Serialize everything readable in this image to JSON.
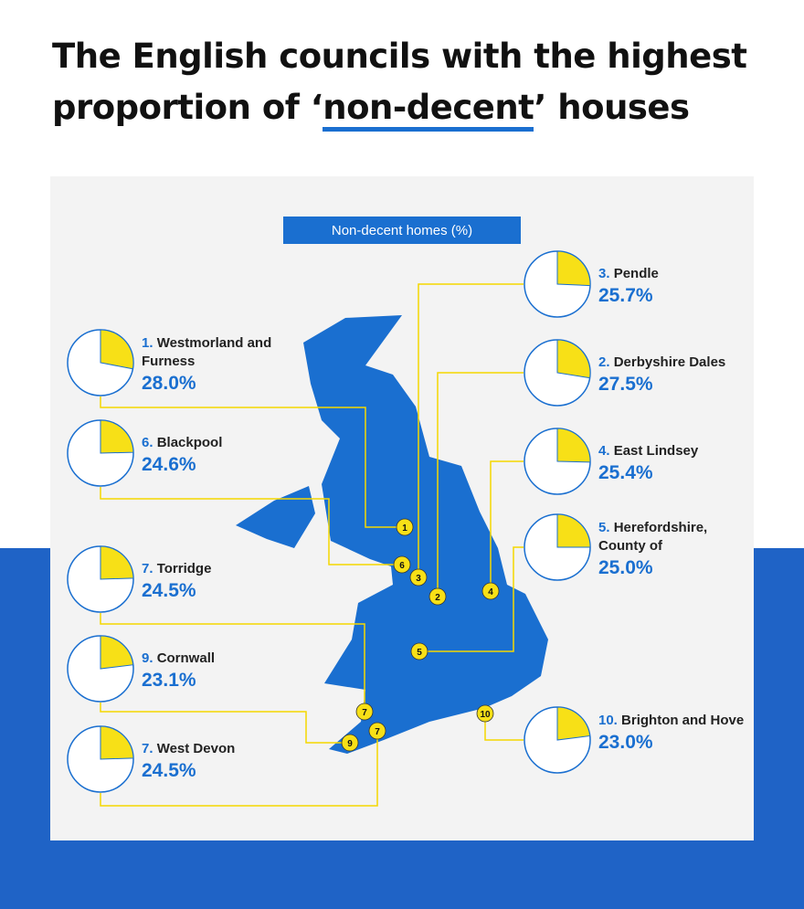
{
  "header": {
    "title_parts": [
      "The English councils with the highest",
      "proportion of ‘",
      "non-decent",
      "’ houses"
    ]
  },
  "legend": "Non-decent homes (%)",
  "councils": [
    {
      "rank": "1.",
      "name": "Westmorland and Furness",
      "value": 28.0,
      "value_label": "28.0%"
    },
    {
      "rank": "6.",
      "name": "Blackpool",
      "value": 24.6,
      "value_label": "24.6%"
    },
    {
      "rank": "7.",
      "name": "Torridge",
      "value": 24.5,
      "value_label": "24.5%"
    },
    {
      "rank": "9.",
      "name": "Cornwall",
      "value": 23.1,
      "value_label": "23.1%"
    },
    {
      "rank": "7.",
      "name": "West Devon",
      "value": 24.5,
      "value_label": "24.5%"
    },
    {
      "rank": "3.",
      "name": "Pendle",
      "value": 25.7,
      "value_label": "25.7%"
    },
    {
      "rank": "2.",
      "name": "Derbyshire Dales",
      "value": 27.5,
      "value_label": "27.5%"
    },
    {
      "rank": "4.",
      "name": "East Lindsey",
      "value": 25.4,
      "value_label": "25.4%"
    },
    {
      "rank": "5.",
      "name": "Herefordshire, County of",
      "value": 25.0,
      "value_label": "25.0%"
    },
    {
      "rank": "10.",
      "name": "Brighton and Hove",
      "value": 23.0,
      "value_label": "23.0%"
    }
  ],
  "markers": [
    "1",
    "6",
    "3",
    "2",
    "4",
    "5",
    "7",
    "9",
    "7",
    "10"
  ]
}
